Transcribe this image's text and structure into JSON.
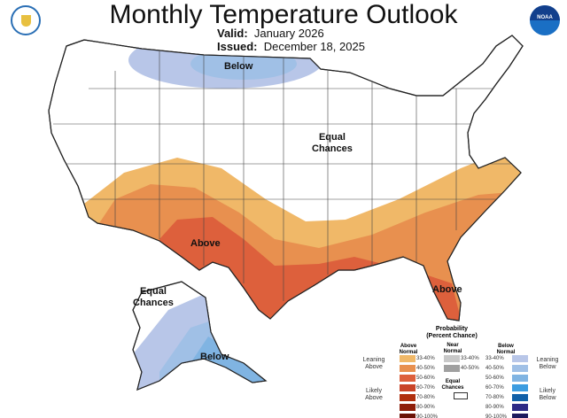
{
  "header": {
    "title": "Monthly Temperature Outlook",
    "valid_label": "Valid:",
    "valid_value": "January 2026",
    "issued_label": "Issued:",
    "issued_value": "December 18, 2025",
    "left_logo": "doc-seal-icon",
    "right_logo": "noaa-logo-icon",
    "noaa_text": "NOAA"
  },
  "map_labels": {
    "below_north": "Below",
    "equal_chances_conus": [
      "Equal",
      "Chances"
    ],
    "above_texas": "Above",
    "above_florida": "Above",
    "equal_chances_alaska": [
      "Equal",
      "Chances"
    ],
    "below_alaska": "Below"
  },
  "legend": {
    "title": [
      "Probability",
      "(Percent Chance)"
    ],
    "above_header": [
      "Above",
      "Normal"
    ],
    "near_header": [
      "Near",
      "Normal"
    ],
    "below_header": [
      "Below",
      "Normal"
    ],
    "leaning_above": [
      "Leaning",
      "Above"
    ],
    "likely_above": [
      "Likely",
      "Above"
    ],
    "leaning_below": [
      "Leaning",
      "Below"
    ],
    "likely_below": [
      "Likely",
      "Below"
    ],
    "equal_chances": [
      "Equal",
      "Chances"
    ],
    "ranges": [
      "33-40%",
      "40-50%",
      "50-60%",
      "60-70%",
      "70-80%",
      "80-90%",
      "90-100%"
    ],
    "near_ranges": [
      "33-40%",
      "40-50%"
    ],
    "above_colors": [
      "#f0b868",
      "#e8904f",
      "#dd603c",
      "#c94428",
      "#b0300f",
      "#8e1e0a",
      "#6b1206"
    ],
    "below_colors": [
      "#b8c6e8",
      "#a0c0e6",
      "#80b4e2",
      "#3c9ce0",
      "#1060a8",
      "#2c2a86",
      "#1d1a5e"
    ],
    "near_colors": [
      "#c8c8c8",
      "#a0a0a0"
    ]
  }
}
